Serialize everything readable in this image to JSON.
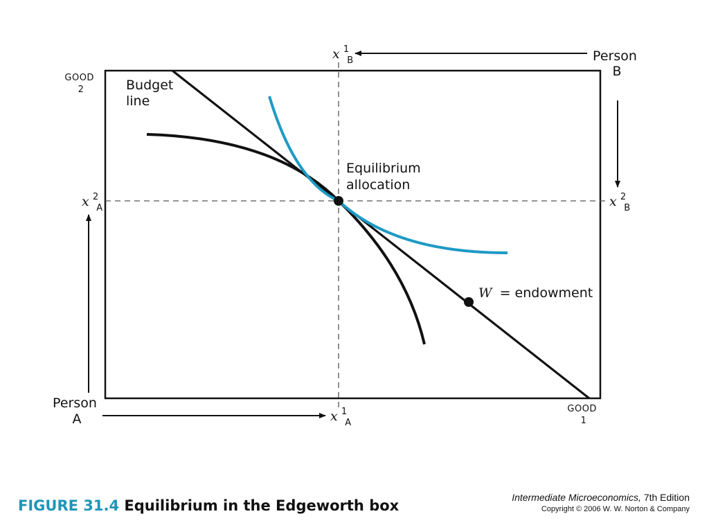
{
  "diagram": {
    "good2_label": [
      "GOOD",
      "2"
    ],
    "good1_label": [
      "GOOD",
      "1"
    ],
    "person_a": [
      "Person",
      "A"
    ],
    "person_b": [
      "Person",
      "B"
    ],
    "budget_line_label": [
      "Budget",
      "line"
    ],
    "equilibrium_label": [
      "Equilibrium",
      "allocation"
    ],
    "endowment_label": {
      "symbol": "W",
      "text": "= endowment"
    },
    "axis_vars": {
      "xA1": {
        "base": "x",
        "sub": "A",
        "sup": "1"
      },
      "xA2": {
        "base": "x",
        "sub": "A",
        "sup": "2"
      },
      "xB1": {
        "base": "x",
        "sub": "B",
        "sup": "1"
      },
      "xB2": {
        "base": "x",
        "sub": "B",
        "sup": "2"
      }
    },
    "colors": {
      "line": "#111111",
      "indiff_b": "#1e9ac4",
      "dashes": "#555555"
    }
  },
  "caption": {
    "figure_number": "FIGURE 31.4",
    "figure_title": "Equilibrium in the Edgeworth box"
  },
  "book": {
    "title": "Intermediate Microeconomics,",
    "edition": "7th Edition",
    "copyright": "Copyright © 2006 W. W. Norton & Company"
  }
}
